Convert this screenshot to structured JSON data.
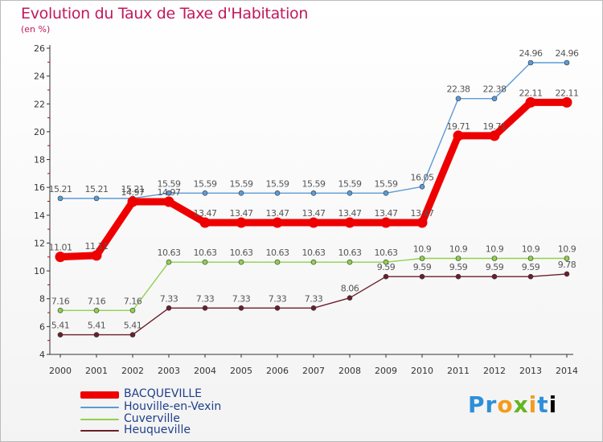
{
  "title": "Evolution du Taux de Taxe d'Habitation",
  "unit_label": "(en %)",
  "logo": [
    "P",
    "r",
    "o",
    "x",
    "i",
    "t",
    "i"
  ],
  "chart_data": {
    "type": "line",
    "x": [
      "2000",
      "2001",
      "2002",
      "2003",
      "2004",
      "2005",
      "2006",
      "2007",
      "2008",
      "2009",
      "2010",
      "2011",
      "2012",
      "2013",
      "2014"
    ],
    "ylim": [
      4,
      26
    ],
    "yticks": [
      4,
      6,
      8,
      10,
      12,
      14,
      16,
      18,
      20,
      22,
      24,
      26
    ],
    "grid": false,
    "legend_position": "bottom-left",
    "series": [
      {
        "name": "Heuqueville",
        "color": "#6b1f2a",
        "values": [
          5.41,
          5.41,
          5.41,
          7.33,
          7.33,
          7.33,
          7.33,
          7.33,
          8.06,
          9.59,
          9.59,
          9.59,
          9.59,
          9.59,
          9.78
        ],
        "labels": [
          "5.41",
          "5.41",
          "5.41",
          "7.33",
          "7.33",
          "7.33",
          "7.33",
          "7.33",
          "8.06",
          "9.59",
          "9.59",
          "9.59",
          "9.59",
          "9.59",
          "9.78"
        ]
      },
      {
        "name": "Cuverville",
        "color": "#8fd14f",
        "values": [
          7.16,
          7.16,
          7.16,
          10.63,
          10.63,
          10.63,
          10.63,
          10.63,
          10.63,
          10.63,
          10.9,
          10.9,
          10.9,
          10.9,
          10.9
        ],
        "labels": [
          "7.16",
          "7.16",
          "7.16",
          "10.63",
          "10.63",
          "10.63",
          "10.63",
          "10.63",
          "10.63",
          "10.63",
          "10.9",
          "10.9",
          "10.9",
          "10.9",
          "10.9"
        ]
      },
      {
        "name": "Houville-en-Vexin",
        "color": "#5b9bd5",
        "values": [
          15.21,
          15.21,
          15.21,
          15.59,
          15.59,
          15.59,
          15.59,
          15.59,
          15.59,
          15.59,
          16.05,
          22.38,
          22.38,
          24.96,
          24.96
        ],
        "labels": [
          "15.21",
          "15.21",
          "15.21",
          "15.59",
          "15.59",
          "15.59",
          "15.59",
          "15.59",
          "15.59",
          "15.59",
          "16.05",
          "22.38",
          "22.38",
          "24.96",
          "24.96"
        ]
      },
      {
        "name": "BACQUEVILLE",
        "color": "#ee0000",
        "values": [
          11.01,
          11.11,
          14.97,
          14.97,
          13.47,
          13.47,
          13.47,
          13.47,
          13.47,
          13.47,
          13.47,
          19.71,
          19.71,
          22.11,
          22.11
        ],
        "labels": [
          "11.01",
          "11.11",
          "14.97",
          "14.97",
          "13.47",
          "13.47",
          "13.47",
          "13.47",
          "13.47",
          "13.47",
          "13.47",
          "19.71",
          "19.71",
          "22.11",
          "22.11"
        ]
      }
    ],
    "legend": [
      {
        "name": "BACQUEVILLE",
        "color": "#ee0000"
      },
      {
        "name": "Houville-en-Vexin",
        "color": "#5b9bd5"
      },
      {
        "name": "Cuverville",
        "color": "#8fd14f"
      },
      {
        "name": "Heuqueville",
        "color": "#6b1f2a"
      }
    ]
  }
}
